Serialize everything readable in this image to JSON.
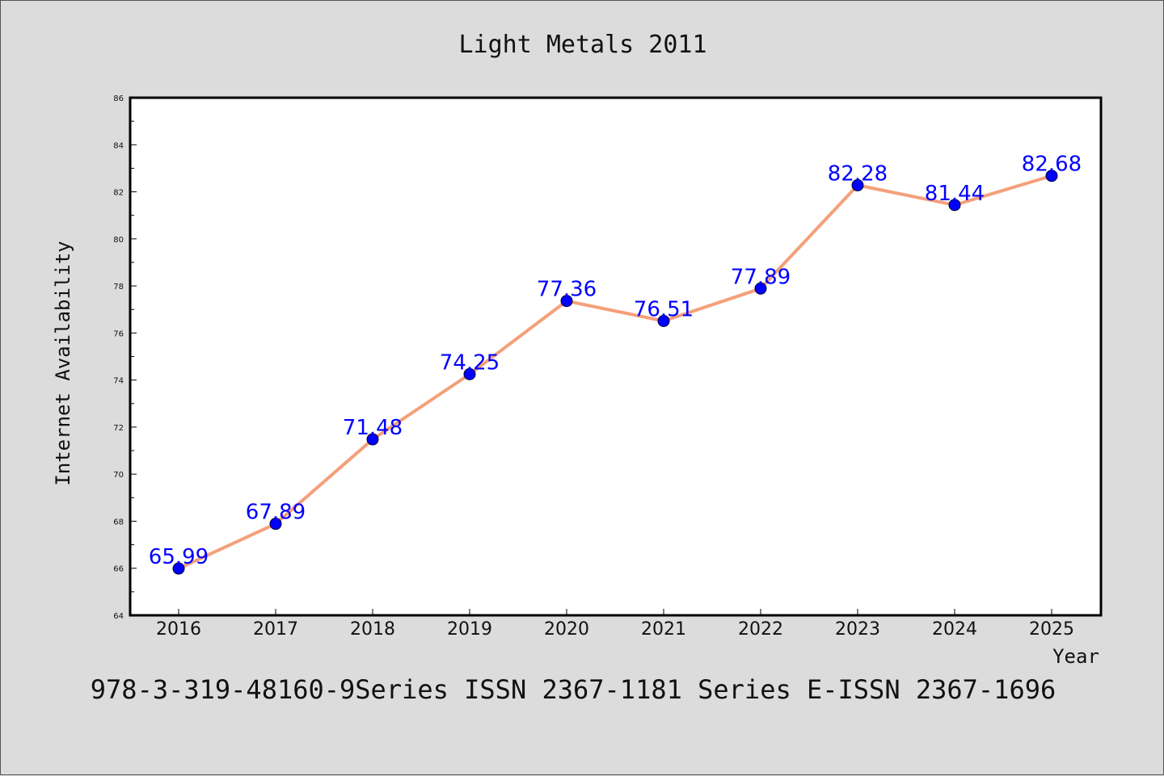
{
  "colors": {
    "background": "#dcdcdc",
    "plot_background": "#ffffff",
    "line": "#f4a07a",
    "marker": "#0000ff",
    "data_label": "#0000ff"
  },
  "footer": "978-3-319-48160-9Series ISSN 2367-1181 Series E-ISSN 2367-1696",
  "chart_data": {
    "type": "line",
    "title": "Light Metals 2011",
    "xlabel": "Year",
    "ylabel": "Internet Availability",
    "categories": [
      "2016",
      "2017",
      "2018",
      "2019",
      "2020",
      "2021",
      "2022",
      "2023",
      "2024",
      "2025"
    ],
    "series": [
      {
        "values": [
          65.99,
          67.89,
          71.48,
          74.25,
          77.36,
          76.51,
          77.89,
          82.28,
          81.44,
          82.68
        ]
      }
    ],
    "data_labels": [
      "65.99",
      "67.89",
      "71.48",
      "74.25",
      "77.36",
      "76.51",
      "77.89",
      "82.28",
      "81.44",
      "82.68"
    ],
    "ylim": [
      64,
      86
    ],
    "yticks": [
      "64",
      "66",
      "68",
      "70",
      "72",
      "74",
      "76",
      "78",
      "80",
      "82",
      "84",
      "86"
    ],
    "grid": false,
    "legend": "none"
  }
}
